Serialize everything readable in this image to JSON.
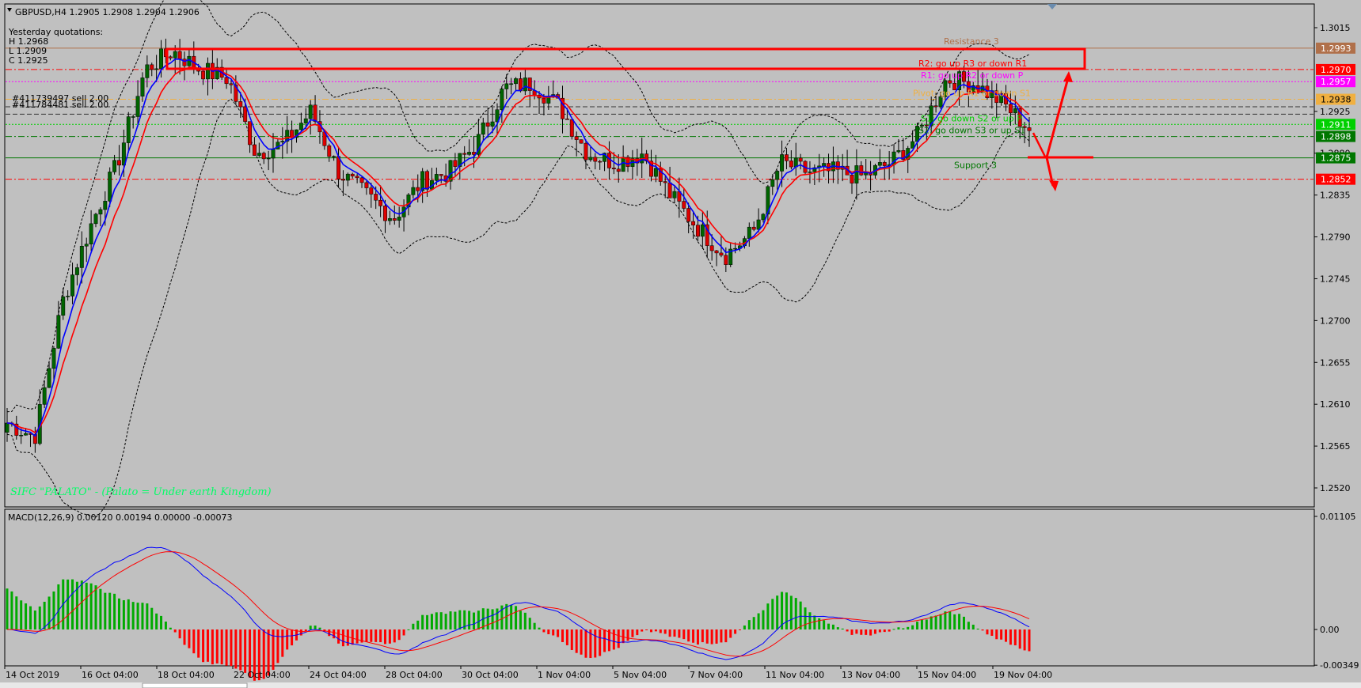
{
  "header": {
    "symbol_line": "GBPUSD,H4  1.2905 1.2908 1.2904 1.2906",
    "yesterday_title": "Yesterday quotations:",
    "yesterday_h": "H 1.2968",
    "yesterday_l": "L 1.2909",
    "yesterday_c": "C 1.2925",
    "order1": "#411739497 sell 2.00",
    "order2": "#411784481 sell 2.00",
    "watermark": "SIFC \"PALATO\" - (Palato = Under earth Kingdom)"
  },
  "levels": [
    {
      "id": "r3",
      "price": 1.2993,
      "label": "Resistance 3",
      "tag": "1.2993",
      "color": "#b0704a",
      "style": "solid"
    },
    {
      "id": "r2",
      "price": 1.297,
      "label": "R2: go up R3 or down R1",
      "tag": "1.2970",
      "color": "#ff0000",
      "style": "dashdot"
    },
    {
      "id": "r1",
      "price": 1.2957,
      "label": "R1: go up R2 or down P",
      "tag": "1.2957",
      "color": "#ff00ff",
      "style": "dot"
    },
    {
      "id": "pp",
      "price": 1.2938,
      "label": "Pivot: go up R1 or down S1",
      "tag": "1.2938",
      "color": "#f0b040",
      "style": "dashdot"
    },
    {
      "id": "s1",
      "price": 1.2911,
      "label": "S1: go down S2 or up P",
      "tag": "1.2911",
      "color": "#00d000",
      "style": "dot"
    },
    {
      "id": "s2",
      "price": 1.2898,
      "label": "S2: go down S3 or up S1",
      "tag": "1.2898",
      "color": "#007700",
      "style": "dashdot"
    },
    {
      "id": "s3",
      "price": 1.2875,
      "label": "Support 3",
      "tag": "1.2875",
      "color": "#007700",
      "style": "solid"
    },
    {
      "id": "lo",
      "price": 1.2852,
      "label": "",
      "tag": "1.2852",
      "color": "#ff0000",
      "style": "dashdot"
    }
  ],
  "price_axis": {
    "ticks": [
      "1.3015",
      "1.2925",
      "1.2880",
      "1.2835",
      "1.2790",
      "1.2745",
      "1.2700",
      "1.2655",
      "1.2610",
      "1.2565",
      "1.2520"
    ],
    "min": 1.251,
    "max": 1.303
  },
  "time_axis": {
    "ticks": [
      "14 Oct 2019",
      "16 Oct 04:00",
      "18 Oct 04:00",
      "22 Oct 04:00",
      "24 Oct 04:00",
      "28 Oct 04:00",
      "30 Oct 04:00",
      "1 Nov 04:00",
      "5 Nov 04:00",
      "7 Nov 04:00",
      "11 Nov 04:00",
      "13 Nov 04:00",
      "15 Nov 04:00",
      "19 Nov 04:00"
    ]
  },
  "macd": {
    "label": "MACD(12,26,9) 0.00120 0.00194 0.00000 -0.00073",
    "axis_ticks": [
      "0.01105",
      "0.00",
      "-0.00349"
    ]
  },
  "colors": {
    "background": "#c0c0c0",
    "bull": "#006400",
    "bear": "#dd0000",
    "ma_fast": "#0000ff",
    "ma_slow": "#ff0000",
    "bands": "#000000",
    "highlight": "#ff0000"
  },
  "chart_data": {
    "type": "candlestick",
    "symbol": "GBPUSD",
    "timeframe": "H4",
    "ohlc_anchor_closes": [
      1.259,
      1.2575,
      1.272,
      1.28,
      1.287,
      1.297,
      1.299,
      1.297,
      1.296,
      1.288,
      1.289,
      1.2925,
      1.286,
      1.2835,
      1.281,
      1.285,
      1.286,
      1.289,
      1.295,
      1.2955,
      1.293,
      1.288,
      1.287,
      1.288,
      1.2835,
      1.28,
      1.277,
      1.2795,
      1.287,
      1.286,
      1.286,
      1.2855,
      1.287,
      1.29,
      1.296,
      1.2955,
      1.2935,
      1.2906
    ],
    "indicators": [
      "Bollinger Bands",
      "Moving Average fast (blue)",
      "Moving Average slow (red)",
      "MACD(12,26,9)"
    ]
  }
}
